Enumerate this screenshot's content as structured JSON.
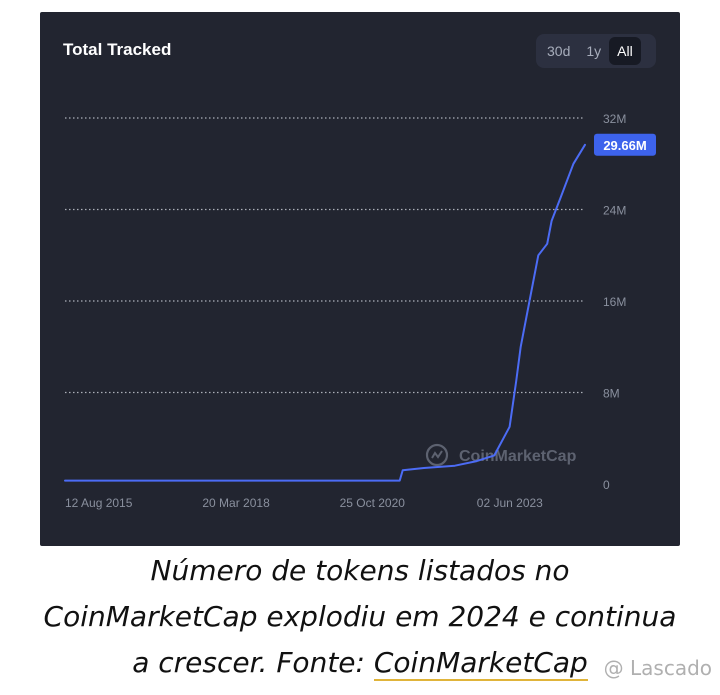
{
  "card": {
    "title": "Total Tracked",
    "range_tabs": [
      "30d",
      "1y",
      "All"
    ],
    "active_tab": "All"
  },
  "chart_data": {
    "type": "line",
    "title": "Total Tracked",
    "x_tick_labels": [
      "12 Aug 2015",
      "20 Mar 2018",
      "25 Oct 2020",
      "02 Jun 2023"
    ],
    "y_tick_labels": [
      "0",
      "8M",
      "16M",
      "24M",
      "32M"
    ],
    "ylim": [
      0,
      32000000
    ],
    "grid": "horizontal dotted",
    "series": [
      {
        "color": "#4c6cf5",
        "x": [
          "2015-08-12",
          "2016-01-01",
          "2017-01-01",
          "2018-01-01",
          "2019-01-01",
          "2020-01-01",
          "2021-01-01",
          "2021-12-15",
          "2022-01-05",
          "2022-06-01",
          "2023-01-01",
          "2023-06-01",
          "2023-10-01",
          "2024-01-15",
          "2024-03-01",
          "2024-04-01",
          "2024-06-01",
          "2024-08-01",
          "2024-10-01",
          "2024-11-01",
          "2025-01-01",
          "2025-04-01",
          "2025-06-20"
        ],
        "values": [
          300000,
          300000,
          300000,
          300000,
          300000,
          300000,
          300000,
          300000,
          1200000,
          1400000,
          1600000,
          2000000,
          2500000,
          5000000,
          9000000,
          12000000,
          16000000,
          20000000,
          21000000,
          23000000,
          25000000,
          28000000,
          29660000
        ]
      }
    ],
    "last_value_label": "29.66M",
    "watermark": "CoinMarketCap"
  },
  "caption": {
    "line1": "Número de tokens listados no",
    "line2": "CoinMarketCap explodiu em 2024 e continua",
    "line3_prefix": "a crescer. Fonte: ",
    "line3_link": "CoinMarketCap"
  },
  "watermark": "@ Lascado",
  "colors": {
    "background": "#222530",
    "line": "#4c6cf5",
    "grid": "#cfd3dc",
    "axis_text": "#8a909e",
    "badge": "#3d63ec"
  }
}
